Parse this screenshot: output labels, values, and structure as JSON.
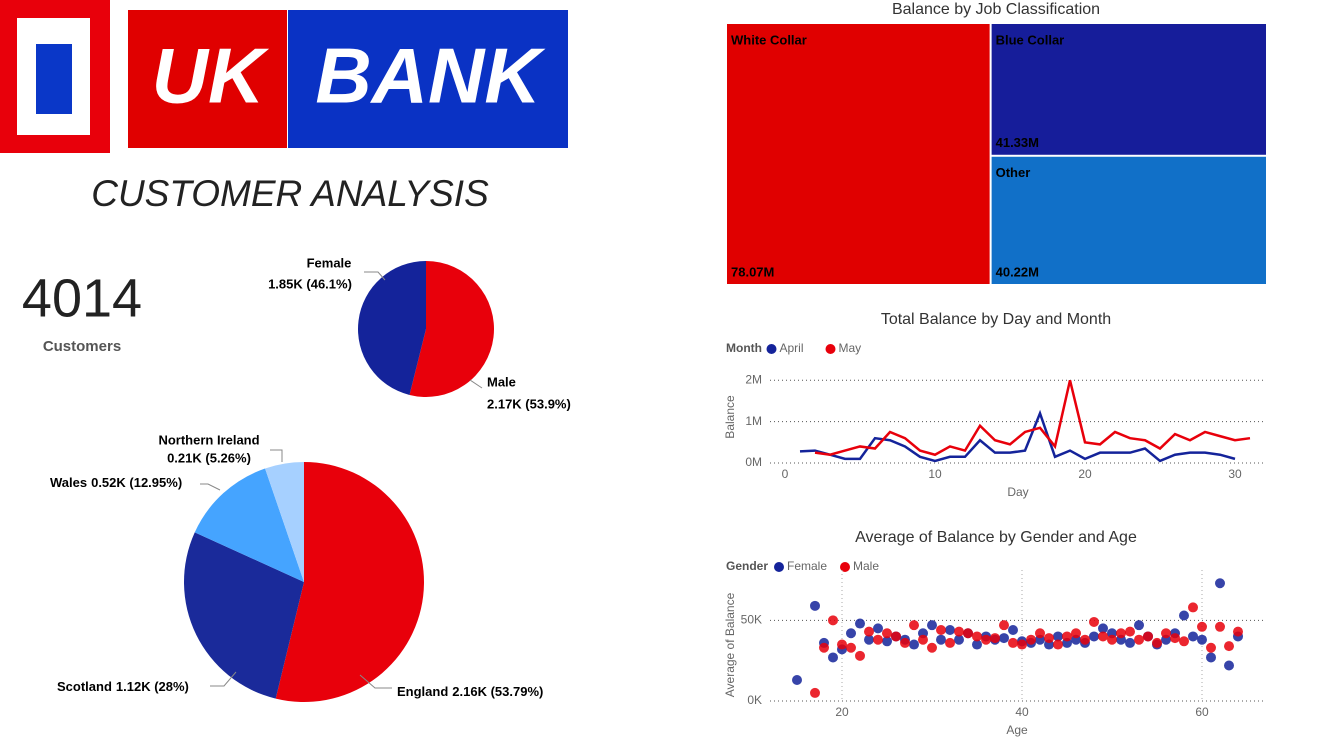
{
  "header": {
    "logo_left": "UK",
    "logo_right": "BANK",
    "title": "CUSTOMER ANALYSIS"
  },
  "kpi": {
    "value": 4014,
    "label": "Customers"
  },
  "chart_data": [
    {
      "type": "pie",
      "categories": [
        "Male",
        "Female"
      ],
      "values": [
        53.9,
        46.1
      ],
      "value_labels": [
        "2.17K (53.9%)",
        "1.85K (46.1%)"
      ],
      "colors": [
        "#e8000b",
        "#14239a"
      ]
    },
    {
      "type": "pie",
      "categories": [
        "England",
        "Scotland",
        "Wales",
        "Northern Ireland"
      ],
      "values": [
        53.79,
        28,
        12.95,
        5.26
      ],
      "value_labels": [
        "2.16K (53.79%)",
        "1.12K (28%)",
        "0.52K (12.95%)",
        "0.21K (5.26%)"
      ],
      "colors": [
        "#e8000b",
        "#1a2a9a",
        "#45a4ff",
        "#a6d0ff"
      ]
    },
    {
      "type": "treemap",
      "title": "Balance by Job Classification",
      "categories": [
        "White Collar",
        "Blue Collar",
        "Other"
      ],
      "values": [
        78.07,
        41.33,
        40.22
      ],
      "value_labels": [
        "78.07M",
        "41.33M",
        "40.22M"
      ],
      "colors": [
        "#e00000",
        "#161d9a",
        "#1170c8"
      ]
    },
    {
      "type": "line",
      "title": "Total Balance by Day and Month",
      "legend_title": "Month",
      "x_label": "Day",
      "y_label": "Balance",
      "x": [
        1,
        2,
        3,
        4,
        5,
        6,
        7,
        8,
        9,
        10,
        11,
        12,
        13,
        14,
        15,
        16,
        17,
        18,
        19,
        20,
        21,
        22,
        23,
        24,
        25,
        26,
        27,
        28,
        29,
        30,
        31
      ],
      "series": [
        {
          "name": "April",
          "color": "#14239a",
          "values": [
            280000,
            300000,
            200000,
            100000,
            100000,
            600000,
            550000,
            400000,
            150000,
            50000,
            150000,
            150000,
            550000,
            250000,
            250000,
            300000,
            1200000,
            150000,
            300000,
            100000,
            250000,
            250000,
            250000,
            350000,
            50000,
            200000,
            250000,
            250000,
            200000,
            100000,
            null
          ]
        },
        {
          "name": "May",
          "color": "#e8000b",
          "values": [
            null,
            250000,
            200000,
            300000,
            400000,
            350000,
            750000,
            600000,
            300000,
            200000,
            400000,
            300000,
            900000,
            550000,
            450000,
            750000,
            850000,
            400000,
            2000000,
            500000,
            450000,
            750000,
            600000,
            550000,
            350000,
            700000,
            550000,
            750000,
            650000,
            550000,
            600000
          ]
        }
      ],
      "xlim": [
        -1,
        32
      ],
      "xticks": [
        0,
        10,
        20,
        30
      ],
      "ylim": [
        0,
        2200000
      ],
      "yticks": [
        {
          "value": 0,
          "label": "0M"
        },
        {
          "value": 1000000,
          "label": "1M"
        },
        {
          "value": 2000000,
          "label": "2M"
        }
      ],
      "grid": true
    },
    {
      "type": "scatter",
      "title": "Average of Balance by Gender and Age",
      "legend_title": "Gender",
      "x_label": "Age",
      "y_label": "Average of Balance",
      "series": [
        {
          "name": "Female",
          "color": "#14239a",
          "x": [
            15,
            17,
            18,
            19,
            20,
            21,
            22,
            23,
            24,
            25,
            26,
            27,
            28,
            29,
            30,
            31,
            32,
            33,
            34,
            35,
            36,
            37,
            38,
            39,
            40,
            41,
            42,
            43,
            44,
            45,
            46,
            47,
            48,
            49,
            50,
            51,
            52,
            53,
            54,
            55,
            56,
            57,
            58,
            59,
            60,
            61,
            62,
            63,
            64
          ],
          "values": [
            13000,
            59000,
            36000,
            27000,
            32000,
            42000,
            48000,
            38000,
            45000,
            37000,
            40000,
            38000,
            35000,
            42000,
            47000,
            38000,
            44000,
            38000,
            42000,
            35000,
            40000,
            38000,
            39000,
            44000,
            37000,
            36000,
            38000,
            35000,
            40000,
            36000,
            38000,
            36000,
            40000,
            45000,
            42000,
            38000,
            36000,
            47000,
            40000,
            35000,
            38000,
            42000,
            53000,
            40000,
            38000,
            27000,
            73000,
            22000,
            40000
          ]
        },
        {
          "name": "Male",
          "color": "#e8000b",
          "x": [
            17,
            18,
            19,
            20,
            21,
            22,
            23,
            24,
            25,
            26,
            27,
            28,
            29,
            30,
            31,
            32,
            33,
            34,
            35,
            36,
            37,
            38,
            39,
            40,
            41,
            42,
            43,
            44,
            45,
            46,
            47,
            48,
            49,
            50,
            51,
            52,
            53,
            54,
            55,
            56,
            57,
            58,
            59,
            60,
            61,
            62,
            63,
            64
          ],
          "values": [
            5000,
            33000,
            50000,
            35000,
            33000,
            28000,
            43000,
            38000,
            42000,
            40000,
            36000,
            47000,
            38000,
            33000,
            44000,
            36000,
            43000,
            42000,
            40000,
            38000,
            39000,
            47000,
            36000,
            35000,
            38000,
            42000,
            39000,
            35000,
            40000,
            42000,
            38000,
            49000,
            40000,
            38000,
            42000,
            43000,
            38000,
            40000,
            36000,
            42000,
            39000,
            37000,
            58000,
            46000,
            33000,
            46000,
            34000,
            43000
          ]
        }
      ],
      "xlim": [
        12,
        67
      ],
      "xticks": [
        20,
        40,
        60
      ],
      "ylim": [
        0,
        75000
      ],
      "yticks": [
        {
          "value": 0,
          "label": "0K"
        },
        {
          "value": 50000,
          "label": "50K"
        }
      ],
      "grid": true
    }
  ]
}
